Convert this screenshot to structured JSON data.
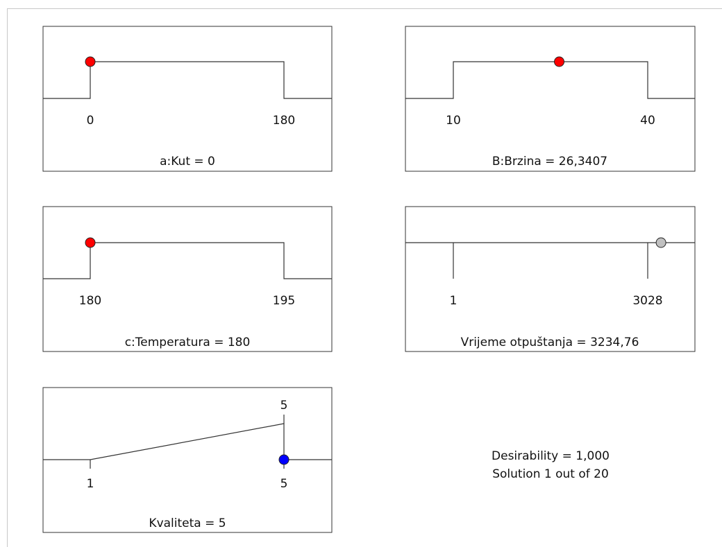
{
  "chart_data": [
    {
      "type": "desirability-ramp",
      "factor": "a:Kut",
      "label": "a:Kut = 0",
      "goal": "range",
      "low": 0,
      "high": 180,
      "low_label": "0",
      "high_label": "180",
      "value": 0,
      "marker_color": "#ff0000"
    },
    {
      "type": "desirability-ramp",
      "factor": "B:Brzina",
      "label": "B:Brzina = 26,3407",
      "goal": "range",
      "low": 10,
      "high": 40,
      "low_label": "10",
      "high_label": "40",
      "value": 26.3407,
      "marker_color": "#ff0000"
    },
    {
      "type": "desirability-ramp",
      "factor": "c:Temperatura",
      "label": "c:Temperatura = 180",
      "goal": "range",
      "low": 180,
      "high": 195,
      "low_label": "180",
      "high_label": "195",
      "value": 180,
      "marker_color": "#ff0000"
    },
    {
      "type": "desirability-ramp",
      "factor": "Vrijeme otpuštanja",
      "label": "Vrijeme otpuštanja = 3234,76",
      "goal": "none",
      "low": 1,
      "high": 3028,
      "low_label": "1",
      "high_label": "3028",
      "value": 3234.76,
      "marker_color": "#c0c0c0"
    },
    {
      "type": "desirability-ramp",
      "factor": "Kvaliteta",
      "label": "Kvaliteta = 5",
      "goal": "maximize",
      "low": 1,
      "high": 5,
      "low_label": "1",
      "high_label": "5",
      "target_label": "5",
      "value": 5,
      "marker_color": "#0000ff"
    }
  ],
  "summary": {
    "desirability": "Desirability = 1,000",
    "solution": "Solution 1 out of 20"
  }
}
